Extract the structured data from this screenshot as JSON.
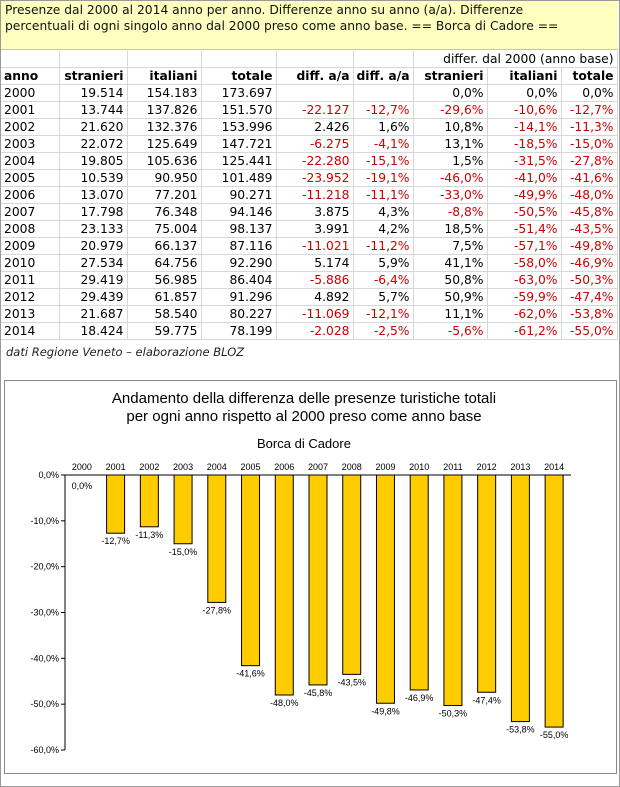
{
  "header": {
    "line1": "Presenze dal 2000 al 2014 anno per anno. Differenze anno su anno (a/a). Differenze",
    "line2": "percentuali di ogni singolo anno dal 2000 preso come anno base. == Borca di Cadore =="
  },
  "table": {
    "group_header": "differ. dal 2000 (anno base)",
    "columns": [
      "anno",
      "stranieri",
      "italiani",
      "totale",
      "diff. a/a",
      "diff. a/a",
      "stranieri",
      "italiani",
      "totale"
    ],
    "rows": [
      [
        "2000",
        "19.514",
        "154.183",
        "173.697",
        "",
        "",
        "0,0%",
        "0,0%",
        "0,0%"
      ],
      [
        "2001",
        "13.744",
        "137.826",
        "151.570",
        "-22.127",
        "-12,7%",
        "-29,6%",
        "-10,6%",
        "-12,7%"
      ],
      [
        "2002",
        "21.620",
        "132.376",
        "153.996",
        "2.426",
        "1,6%",
        "10,8%",
        "-14,1%",
        "-11,3%"
      ],
      [
        "2003",
        "22.072",
        "125.649",
        "147.721",
        "-6.275",
        "-4,1%",
        "13,1%",
        "-18,5%",
        "-15,0%"
      ],
      [
        "2004",
        "19.805",
        "105.636",
        "125.441",
        "-22.280",
        "-15,1%",
        "1,5%",
        "-31,5%",
        "-27,8%"
      ],
      [
        "2005",
        "10.539",
        "90.950",
        "101.489",
        "-23.952",
        "-19,1%",
        "-46,0%",
        "-41,0%",
        "-41,6%"
      ],
      [
        "2006",
        "13.070",
        "77.201",
        "90.271",
        "-11.218",
        "-11,1%",
        "-33,0%",
        "-49,9%",
        "-48,0%"
      ],
      [
        "2007",
        "17.798",
        "76.348",
        "94.146",
        "3.875",
        "4,3%",
        "-8,8%",
        "-50,5%",
        "-45,8%"
      ],
      [
        "2008",
        "23.133",
        "75.004",
        "98.137",
        "3.991",
        "4,2%",
        "18,5%",
        "-51,4%",
        "-43,5%"
      ],
      [
        "2009",
        "20.979",
        "66.137",
        "87.116",
        "-11.021",
        "-11,2%",
        "7,5%",
        "-57,1%",
        "-49,8%"
      ],
      [
        "2010",
        "27.534",
        "64.756",
        "92.290",
        "5.174",
        "5,9%",
        "41,1%",
        "-58,0%",
        "-46,9%"
      ],
      [
        "2011",
        "29.419",
        "56.985",
        "86.404",
        "-5.886",
        "-6,4%",
        "50,8%",
        "-63,0%",
        "-50,3%"
      ],
      [
        "2012",
        "29.439",
        "61.857",
        "91.296",
        "4.892",
        "5,7%",
        "50,9%",
        "-59,9%",
        "-47,4%"
      ],
      [
        "2013",
        "21.687",
        "58.540",
        "80.227",
        "-11.069",
        "-12,1%",
        "11,1%",
        "-62,0%",
        "-53,8%"
      ],
      [
        "2014",
        "18.424",
        "59.775",
        "78.199",
        "-2.028",
        "-2,5%",
        "-5,6%",
        "-61,2%",
        "-55,0%"
      ]
    ]
  },
  "source_note": "dati Regione Veneto – elaborazione BLOZ",
  "colors": {
    "negative": "#cc0000",
    "bar_fill": "#ffcc00",
    "title_bg": "#ffffc0"
  },
  "chart_data": {
    "type": "bar",
    "title": "Andamento della differenza delle presenze turistiche totali",
    "title_line2": "per ogni anno rispetto al 2000 preso come anno base",
    "subtitle": "Borca di Cadore",
    "categories": [
      "2000",
      "2001",
      "2002",
      "2003",
      "2004",
      "2005",
      "2006",
      "2007",
      "2008",
      "2009",
      "2010",
      "2011",
      "2012",
      "2013",
      "2014"
    ],
    "values": [
      0.0,
      -12.7,
      -11.3,
      -15.0,
      -27.8,
      -41.6,
      -48.0,
      -45.8,
      -43.5,
      -49.8,
      -46.9,
      -50.3,
      -47.4,
      -53.8,
      -55.0
    ],
    "labels": [
      "0,0%",
      "-12,7%",
      "-11,3%",
      "-15,0%",
      "-27,8%",
      "-41,6%",
      "-48,0%",
      "-45,8%",
      "-43,5%",
      "-49,8%",
      "-46,9%",
      "-50,3%",
      "-47,4%",
      "-53,8%",
      "-55,0%"
    ],
    "yticks": [
      0,
      -10,
      -20,
      -30,
      -40,
      -50,
      -60
    ],
    "ytick_labels": [
      "0,0%",
      "-10,0%",
      "-20,0%",
      "-30,0%",
      "-40,0%",
      "-50,0%",
      "-60,0%"
    ],
    "ylim": [
      -60,
      0
    ],
    "xlabel": "",
    "ylabel": "",
    "grid": false,
    "legend": "none"
  }
}
